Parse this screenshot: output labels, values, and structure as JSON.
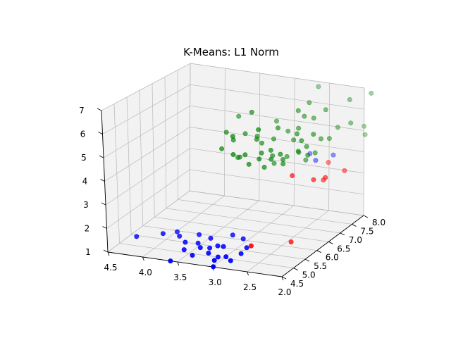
{
  "chart_data": {
    "type": "scatter3d",
    "title": "K-Means: L1 Norm",
    "xlabel": "",
    "ylabel": "",
    "zlabel": "",
    "grid": true,
    "xlim": [
      4.5,
      2.0
    ],
    "ylim": [
      4.5,
      8.0
    ],
    "zlim": [
      1,
      7
    ],
    "x_ticks": [
      "4.5",
      "4.0",
      "3.5",
      "3.0",
      "2.5",
      "2.0"
    ],
    "y_ticks": [
      "4.5",
      "5.0",
      "5.5",
      "6.0",
      "6.5",
      "7.0",
      "7.5",
      "8.0"
    ],
    "z_ticks": [
      "1",
      "2",
      "3",
      "4",
      "5",
      "6",
      "7"
    ],
    "series": [
      {
        "color": "#0000ff",
        "points": [
          [
            4.25,
            5.0,
            1.4
          ],
          [
            3.9,
            5.1,
            1.6
          ],
          [
            3.7,
            5.2,
            1.5
          ],
          [
            3.55,
            5.0,
            1.45
          ],
          [
            3.4,
            5.1,
            1.4
          ],
          [
            3.3,
            4.9,
            1.4
          ],
          [
            3.2,
            5.0,
            1.35
          ],
          [
            3.1,
            5.05,
            1.45
          ],
          [
            3.15,
            4.8,
            1.3
          ],
          [
            3.0,
            5.0,
            1.5
          ],
          [
            2.9,
            4.8,
            1.25
          ],
          [
            2.75,
            5.0,
            1.3
          ],
          [
            2.7,
            5.1,
            1.5
          ],
          [
            2.8,
            4.7,
            1.2
          ],
          [
            3.35,
            4.7,
            1.2
          ],
          [
            3.0,
            4.6,
            1.2
          ],
          [
            3.25,
            5.2,
            1.6
          ],
          [
            3.5,
            4.8,
            1.3
          ],
          [
            3.05,
            4.9,
            1.1
          ],
          [
            3.6,
            4.5,
            1.0
          ],
          [
            2.85,
            5.4,
            1.6
          ],
          [
            3.45,
            5.3,
            1.6
          ],
          [
            2.95,
            4.4,
            1.1
          ],
          [
            3.8,
            5.4,
            1.5
          ],
          [
            3.0,
            5.4,
            1.7
          ],
          [
            2.6,
            7.5,
            4.0
          ],
          [
            2.45,
            7.3,
            3.9
          ],
          [
            2.3,
            7.6,
            4.0
          ]
        ]
      },
      {
        "color": "#008000",
        "points": [
          [
            3.0,
            6.3,
            6.5
          ],
          [
            2.8,
            6.0,
            6.0
          ],
          [
            2.5,
            7.2,
            6.6
          ],
          [
            2.3,
            7.3,
            6.3
          ],
          [
            2.55,
            7.7,
            7.0
          ],
          [
            2.1,
            7.7,
            6.6
          ],
          [
            1.9,
            8.0,
            6.8
          ],
          [
            3.3,
            6.6,
            6.0
          ],
          [
            3.2,
            6.1,
            5.3
          ],
          [
            2.7,
            6.5,
            5.8
          ],
          [
            2.9,
            6.2,
            5.4
          ],
          [
            2.9,
            7.0,
            5.7
          ],
          [
            2.5,
            7.0,
            6.1
          ],
          [
            2.55,
            6.9,
            5.6
          ],
          [
            2.5,
            6.7,
            5.5
          ],
          [
            2.3,
            6.8,
            5.5
          ],
          [
            2.4,
            6.6,
            5.3
          ],
          [
            2.55,
            6.7,
            5.2
          ],
          [
            2.2,
            7.5,
            5.4
          ],
          [
            2.05,
            7.6,
            5.6
          ],
          [
            2.0,
            8.0,
            5.2
          ],
          [
            1.95,
            7.9,
            4.9
          ],
          [
            3.3,
            5.9,
            5.0
          ],
          [
            3.1,
            5.8,
            4.9
          ],
          [
            3.0,
            6.0,
            4.8
          ],
          [
            2.8,
            6.1,
            4.9
          ],
          [
            2.7,
            6.2,
            5.0
          ],
          [
            2.9,
            6.4,
            5.1
          ],
          [
            2.6,
            6.3,
            4.8
          ],
          [
            2.45,
            6.6,
            4.8
          ],
          [
            2.4,
            6.8,
            4.9
          ],
          [
            2.35,
            6.7,
            4.6
          ],
          [
            2.6,
            6.4,
            4.5
          ],
          [
            2.7,
            6.2,
            4.6
          ],
          [
            2.8,
            6.0,
            4.7
          ],
          [
            3.0,
            6.5,
            5.3
          ],
          [
            3.1,
            6.3,
            5.5
          ],
          [
            2.8,
            6.6,
            5.2
          ],
          [
            2.7,
            6.9,
            5.4
          ],
          [
            3.3,
            6.1,
            5.6
          ],
          [
            3.1,
            5.8,
            5.7
          ],
          [
            2.4,
            7.1,
            6.0
          ],
          [
            2.55,
            6.9,
            6.4
          ],
          [
            2.95,
            6.0,
            4.4
          ],
          [
            2.8,
            6.2,
            4.2
          ],
          [
            2.6,
            6.4,
            4.3
          ],
          [
            2.65,
            6.7,
            4.4
          ],
          [
            2.8,
            6.6,
            4.1
          ],
          [
            2.55,
            6.9,
            4.5
          ],
          [
            2.45,
            6.9,
            4.2
          ],
          [
            2.35,
            7.0,
            4.5
          ],
          [
            2.75,
            6.4,
            4.6
          ],
          [
            3.15,
            6.2,
            4.5
          ],
          [
            3.25,
            6.4,
            4.3
          ],
          [
            2.25,
            7.3,
            5.0
          ],
          [
            2.3,
            7.1,
            5.1
          ]
        ]
      },
      {
        "color": "#ff0000",
        "points": [
          [
            2.4,
            6.2,
            4.0
          ],
          [
            2.2,
            6.5,
            3.7
          ],
          [
            2.1,
            6.7,
            3.7
          ],
          [
            2.3,
            7.4,
            3.8
          ],
          [
            2.2,
            6.9,
            3.4
          ],
          [
            2.0,
            7.2,
            3.7
          ],
          [
            2.6,
            5.0,
            1.7
          ],
          [
            2.3,
            5.8,
            1.4
          ]
        ]
      }
    ]
  }
}
